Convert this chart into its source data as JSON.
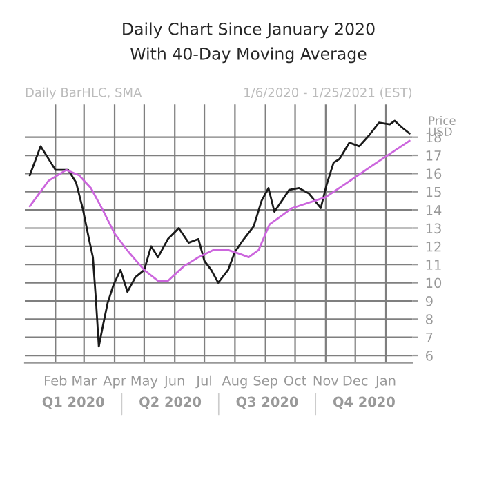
{
  "chart_data": {
    "type": "line",
    "title": "Daily Chart Since January 2020",
    "subtitle": "With 40-Day Moving Average",
    "ylabel": "Price\nUSD",
    "annotations": [
      "Daily BarHLC, SMA",
      "1/6/2020 - 1/25/2021 (EST)",
      "Q1 2020",
      "Q2 2020",
      "Q3 2020",
      "Q4 2020"
    ],
    "series": [
      {
        "color": "#1a1a1a",
        "x": [
          "2020-01-06",
          "2020-01-17",
          "2020-02-01",
          "2020-02-14",
          "2020-02-22",
          "2020-02-29",
          "2020-03-06",
          "2020-03-10",
          "2020-03-13",
          "2020-03-16",
          "2020-03-20",
          "2020-03-25",
          "2020-03-31",
          "2020-04-07",
          "2020-04-14",
          "2020-04-22",
          "2020-05-01",
          "2020-05-08",
          "2020-05-15",
          "2020-05-25",
          "2020-06-05",
          "2020-06-15",
          "2020-06-25",
          "2020-07-01",
          "2020-07-08",
          "2020-07-15",
          "2020-07-25",
          "2020-08-01",
          "2020-08-10",
          "2020-08-20",
          "2020-08-28",
          "2020-09-04",
          "2020-09-10",
          "2020-09-25",
          "2020-10-05",
          "2020-10-15",
          "2020-10-27",
          "2020-11-02",
          "2020-11-09",
          "2020-11-15",
          "2020-11-25",
          "2020-12-05",
          "2020-12-15",
          "2020-12-25",
          "2021-01-05",
          "2021-01-10",
          "2021-01-18",
          "2021-01-25"
        ],
        "values": [
          15.9,
          17.5,
          16.2,
          16.2,
          15.5,
          14.0,
          12.4,
          11.4,
          9.1,
          6.5,
          7.6,
          8.9,
          9.9,
          10.7,
          9.5,
          10.3,
          10.7,
          12.0,
          11.4,
          12.4,
          13.0,
          12.2,
          12.4,
          11.2,
          10.7,
          10.0,
          10.7,
          11.7,
          12.4,
          13.1,
          14.5,
          15.2,
          13.9,
          15.1,
          15.2,
          14.9,
          14.1,
          15.4,
          16.6,
          16.8,
          17.7,
          17.5,
          18.1,
          18.8,
          18.7,
          18.9,
          18.5,
          18.2
        ]
      },
      {
        "color": "#cc66dd",
        "x": [
          "2020-01-06",
          "2020-01-25",
          "2020-02-12",
          "2020-02-25",
          "2020-03-08",
          "2020-03-20",
          "2020-04-01",
          "2020-04-15",
          "2020-05-01",
          "2020-05-15",
          "2020-05-25",
          "2020-06-10",
          "2020-06-25",
          "2020-07-10",
          "2020-07-25",
          "2020-08-05",
          "2020-08-15",
          "2020-08-25",
          "2020-09-05",
          "2020-09-28",
          "2020-11-01",
          "2020-12-01",
          "2020-12-20",
          "2021-01-25"
        ],
        "values": [
          14.2,
          15.6,
          16.2,
          15.9,
          15.2,
          14.0,
          12.7,
          11.7,
          10.7,
          10.1,
          10.1,
          10.9,
          11.4,
          11.8,
          11.8,
          11.6,
          11.4,
          11.8,
          13.2,
          14.1,
          14.7,
          15.8,
          16.5,
          17.8
        ]
      }
    ],
    "xlim": [
      "2020-01-01",
      "2021-01-28"
    ],
    "xticks": [
      {
        "value": "2020-02-01",
        "label": "Feb"
      },
      {
        "value": "2020-03-01",
        "label": "Mar"
      },
      {
        "value": "2020-04-01",
        "label": "Apr"
      },
      {
        "value": "2020-05-01",
        "label": "May"
      },
      {
        "value": "2020-06-01",
        "label": "Jun"
      },
      {
        "value": "2020-07-01",
        "label": "Jul"
      },
      {
        "value": "2020-08-01",
        "label": "Aug"
      },
      {
        "value": "2020-09-01",
        "label": "Sep"
      },
      {
        "value": "2020-10-01",
        "label": "Oct"
      },
      {
        "value": "2020-11-01",
        "label": "Nov"
      },
      {
        "value": "2020-12-01",
        "label": "Dec"
      },
      {
        "value": "2021-01-01",
        "label": "Jan"
      }
    ],
    "ylim": [
      5.6,
      19.8
    ],
    "yticks": [
      6,
      7,
      8,
      9,
      10,
      11,
      12,
      13,
      14,
      15,
      16,
      17,
      18
    ],
    "grid": true,
    "line_style": "solid",
    "marker": "none"
  }
}
